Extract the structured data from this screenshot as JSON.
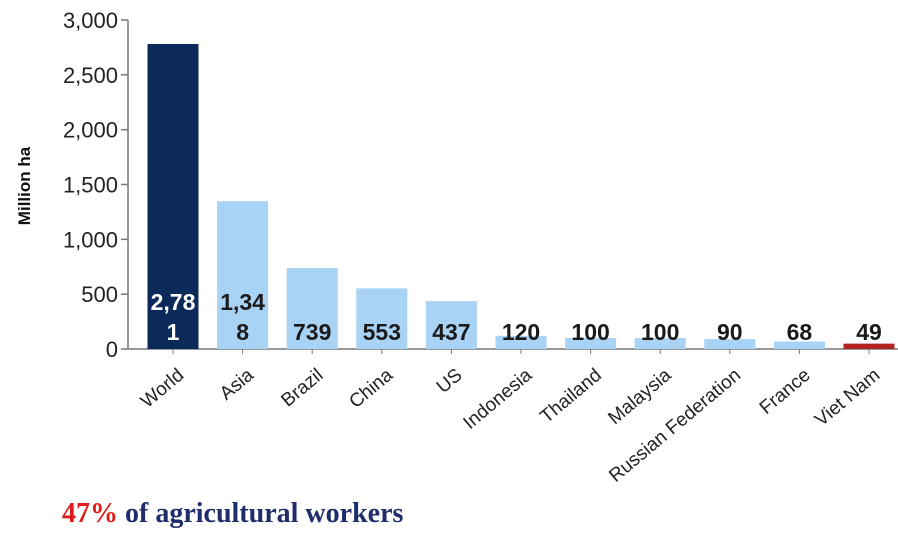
{
  "chart_data": {
    "type": "bar",
    "ylabel": "Million ha",
    "ylim": [
      0,
      3000
    ],
    "yticks": [
      0,
      500,
      1000,
      1500,
      2000,
      2500,
      3000
    ],
    "ytick_labels": [
      "0",
      "500",
      "1,000",
      "1,500",
      "2,000",
      "2,500",
      "3,000"
    ],
    "categories": [
      "World",
      "Asia",
      "Brazil",
      "China",
      "US",
      "Indonesia",
      "Thailand",
      "Malaysia",
      "Russian Federation",
      "France",
      "Viet Nam"
    ],
    "values": [
      2781,
      1348,
      739,
      553,
      437,
      120,
      100,
      100,
      90,
      68,
      49
    ],
    "data_labels": [
      [
        "2,78",
        "1"
      ],
      [
        "1,34",
        "8"
      ],
      [
        "739"
      ],
      [
        "553"
      ],
      [
        "437"
      ],
      [
        "120"
      ],
      [
        "100"
      ],
      [
        "100"
      ],
      [
        "90"
      ],
      [
        "68"
      ],
      [
        "49"
      ]
    ],
    "bar_colors": [
      "#0b2a5a",
      "#a9d3f5",
      "#a9d3f5",
      "#a9d3f5",
      "#a9d3f5",
      "#a9d3f5",
      "#a9d3f5",
      "#a9d3f5",
      "#a9d3f5",
      "#a9d3f5",
      "#b22222"
    ],
    "label_colors": [
      "#ffffff",
      "#1a1a1a",
      "#1a1a1a",
      "#1a1a1a",
      "#1a1a1a",
      "#1a1a1a",
      "#1a1a1a",
      "#1a1a1a",
      "#1a1a1a",
      "#1a1a1a",
      "#1a1a1a"
    ],
    "grid": false
  },
  "footnote": {
    "highlight": "47%",
    "text": " of agricultural workers",
    "highlight_color": "#e01b1b",
    "text_color": "#1f2d6b"
  }
}
